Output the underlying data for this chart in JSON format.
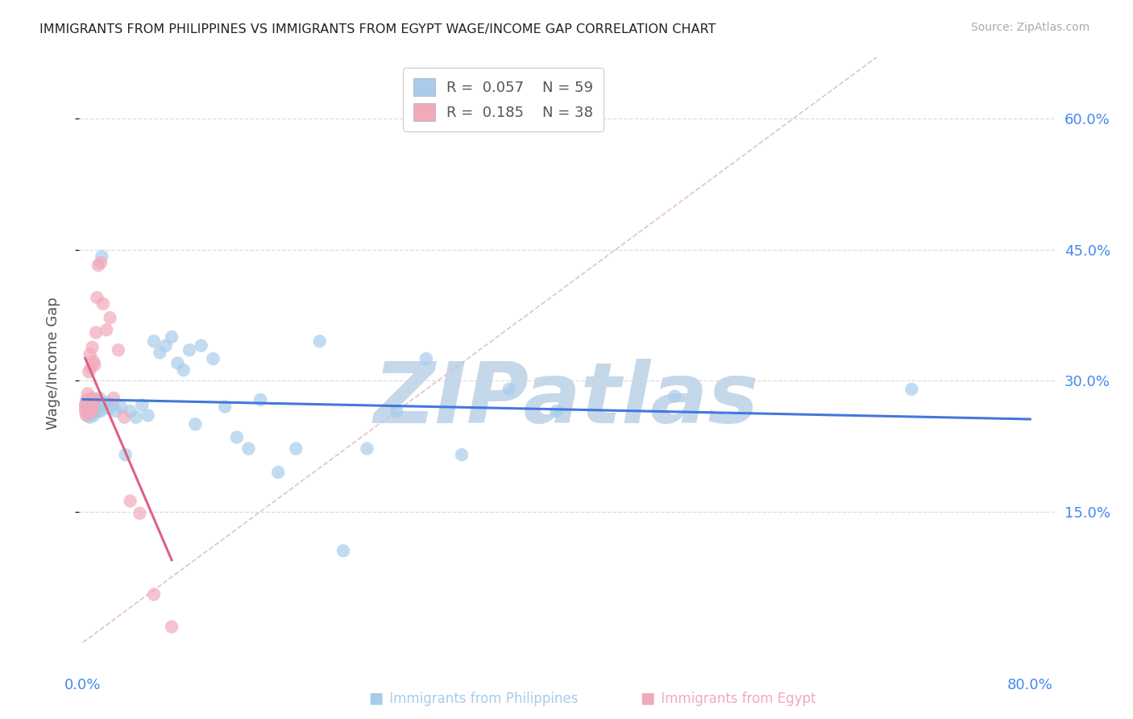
{
  "title": "IMMIGRANTS FROM PHILIPPINES VS IMMIGRANTS FROM EGYPT WAGE/INCOME GAP CORRELATION CHART",
  "source": "Source: ZipAtlas.com",
  "ylabel": "Wage/Income Gap",
  "xlim": [
    -0.003,
    0.82
  ],
  "ylim": [
    -0.03,
    0.67
  ],
  "philippines_color": "#A8CCEA",
  "egypt_color": "#F2AABB",
  "trend_phil_color": "#4477DD",
  "trend_egypt_color": "#E06080",
  "diag_color": "#DDBBCC",
  "philippines_R": "0.057",
  "philippines_N": "59",
  "egypt_R": "0.185",
  "egypt_N": "38",
  "philippines_x": [
    0.002,
    0.003,
    0.004,
    0.004,
    0.005,
    0.005,
    0.006,
    0.006,
    0.007,
    0.007,
    0.008,
    0.008,
    0.009,
    0.009,
    0.01,
    0.01,
    0.011,
    0.012,
    0.013,
    0.014,
    0.015,
    0.016,
    0.018,
    0.02,
    0.022,
    0.025,
    0.028,
    0.032,
    0.036,
    0.04,
    0.045,
    0.05,
    0.055,
    0.06,
    0.065,
    0.07,
    0.075,
    0.08,
    0.085,
    0.09,
    0.095,
    0.1,
    0.11,
    0.12,
    0.13,
    0.14,
    0.15,
    0.165,
    0.18,
    0.2,
    0.22,
    0.24,
    0.265,
    0.29,
    0.32,
    0.36,
    0.4,
    0.5,
    0.7
  ],
  "philippines_y": [
    0.27,
    0.275,
    0.268,
    0.26,
    0.272,
    0.265,
    0.278,
    0.258,
    0.275,
    0.27,
    0.265,
    0.272,
    0.278,
    0.26,
    0.272,
    0.265,
    0.27,
    0.272,
    0.265,
    0.28,
    0.265,
    0.442,
    0.272,
    0.275,
    0.268,
    0.272,
    0.265,
    0.27,
    0.215,
    0.265,
    0.258,
    0.272,
    0.26,
    0.345,
    0.332,
    0.34,
    0.35,
    0.32,
    0.312,
    0.335,
    0.25,
    0.34,
    0.325,
    0.27,
    0.235,
    0.222,
    0.278,
    0.195,
    0.222,
    0.345,
    0.105,
    0.222,
    0.265,
    0.325,
    0.215,
    0.29,
    0.265,
    0.282,
    0.29
  ],
  "egypt_x": [
    0.002,
    0.002,
    0.003,
    0.003,
    0.003,
    0.004,
    0.004,
    0.004,
    0.005,
    0.005,
    0.005,
    0.006,
    0.006,
    0.006,
    0.007,
    0.007,
    0.007,
    0.008,
    0.008,
    0.008,
    0.009,
    0.009,
    0.01,
    0.01,
    0.011,
    0.012,
    0.013,
    0.015,
    0.017,
    0.02,
    0.023,
    0.026,
    0.03,
    0.035,
    0.04,
    0.048,
    0.06,
    0.075
  ],
  "egypt_y": [
    0.272,
    0.265,
    0.268,
    0.278,
    0.26,
    0.275,
    0.285,
    0.265,
    0.272,
    0.31,
    0.265,
    0.275,
    0.268,
    0.33,
    0.278,
    0.315,
    0.268,
    0.265,
    0.28,
    0.338,
    0.275,
    0.322,
    0.278,
    0.318,
    0.355,
    0.395,
    0.432,
    0.435,
    0.388,
    0.358,
    0.372,
    0.28,
    0.335,
    0.258,
    0.162,
    0.148,
    0.055,
    0.018
  ],
  "watermark": "ZIPatlas",
  "watermark_color": "#C5D8EA",
  "background_color": "#FFFFFF",
  "grid_color": "#D8D8D8",
  "title_color": "#222222",
  "tick_label_color": "#4488EE"
}
